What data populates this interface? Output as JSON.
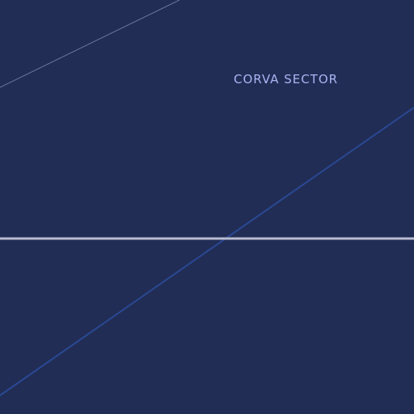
{
  "map": {
    "background_color": "#212d55",
    "label": {
      "text": "CORVA SECTOR",
      "color": "#aab4f2"
    },
    "features": [
      {
        "name": "thin-road-line",
        "color": "#6a7699"
      },
      {
        "name": "diagonal-route-line",
        "color": "#2a4893"
      },
      {
        "name": "horizontal-highway-line",
        "color": "#b9bcd0"
      }
    ]
  }
}
